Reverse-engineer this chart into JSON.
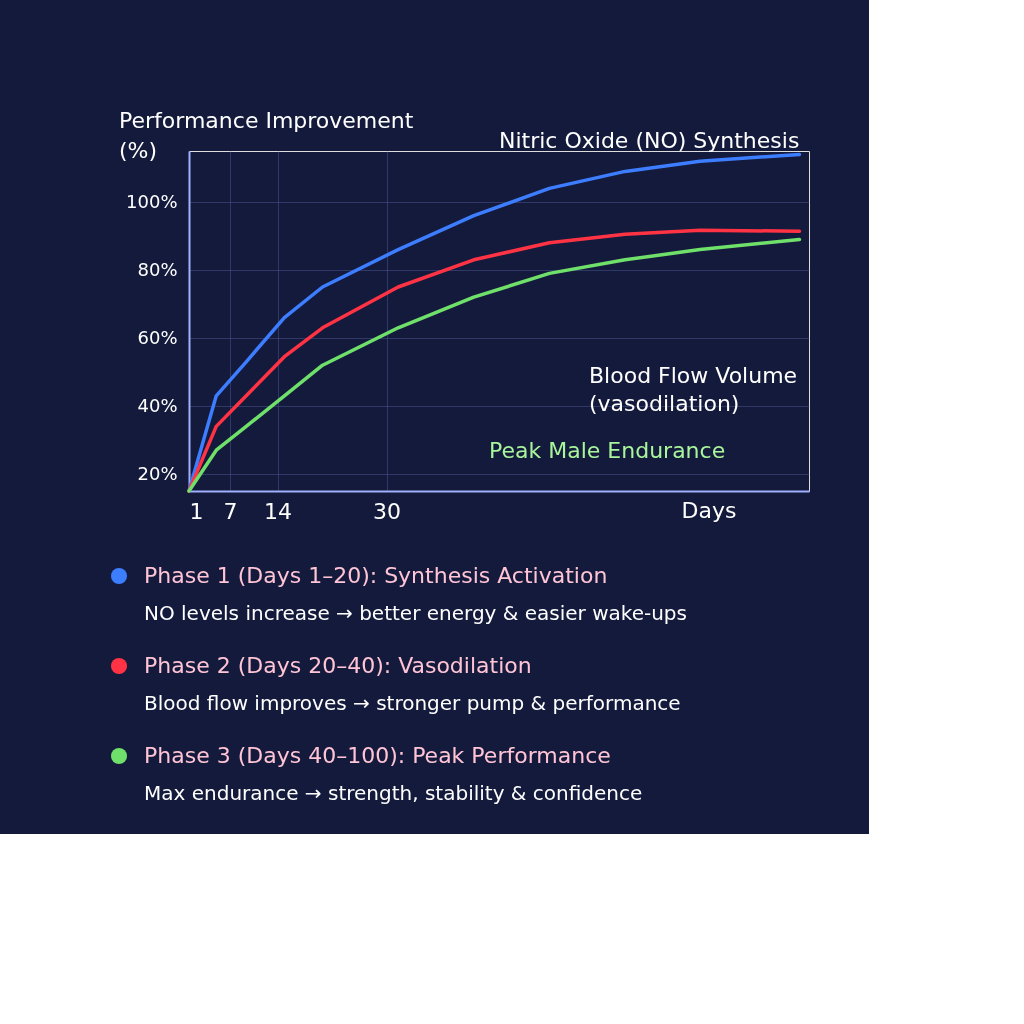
{
  "chart_data": {
    "type": "line",
    "ylabel": "Performance Improvement (%)",
    "xlabel": "Days",
    "xlim": [
      1,
      92
    ],
    "xticks": [
      1,
      7,
      14,
      30
    ],
    "ylim": [
      15,
      115
    ],
    "yticks": [
      {
        "value": 20,
        "label": "20%"
      },
      {
        "value": 40,
        "label": "40%"
      },
      {
        "value": 60,
        "label": "60%"
      },
      {
        "value": 80,
        "label": "80%"
      },
      {
        "value": 100,
        "label": "100%"
      }
    ],
    "grid": true,
    "legend": "bottom",
    "marker": "none",
    "line_style": "solid",
    "series": [
      {
        "name": "Phase 1 (Days 1–20): Synthesis Activation",
        "color": "#3d7dff",
        "x": [
          1,
          5,
          9.4,
          15,
          20.6,
          31.7,
          42.8,
          53.9,
          65,
          76,
          90.6
        ],
        "values": [
          15,
          43,
          53,
          66,
          75,
          86,
          96,
          104,
          109,
          112,
          114
        ]
      },
      {
        "name": "Phase 2 (Days 20–40): Vasodilation",
        "color": "#ff3344",
        "x": [
          1,
          5,
          9.4,
          15,
          20.6,
          31.7,
          42.8,
          53.9,
          65,
          76,
          90.6
        ],
        "values": [
          15,
          34,
          43,
          54.5,
          63,
          75,
          83,
          88,
          90.5,
          91.7,
          91.4
        ]
      },
      {
        "name": "Phase 3 (Days 40–100): Peak Performance",
        "color": "#6fe06a",
        "x": [
          1,
          5,
          9.4,
          15,
          20.6,
          31.7,
          42.8,
          53.9,
          65,
          76,
          90.6
        ],
        "values": [
          15,
          27,
          34,
          43,
          52,
          63,
          72,
          79,
          83,
          86,
          89
        ]
      }
    ],
    "annotations": [
      "Nitric Oxide (NO) Synthesis",
      "Blood Flow Volume (vasodilation)",
      "Peak Male Endurance",
      "NO levels increase → better energy & easier wake-ups",
      "Blood flow improves → stronger pump & performance",
      "Max endurance → strength, stability & confidence"
    ]
  }
}
